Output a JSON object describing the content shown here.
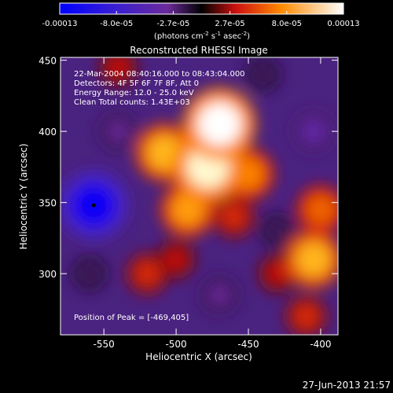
{
  "colorbar": {
    "ticks": [
      "-0.00013",
      "-8.0e-05",
      "-2.7e-05",
      "2.7e-05",
      "8.0e-05",
      "0.00013"
    ],
    "units": "(photons cm",
    "units_sup1": "-2",
    "units_mid": " s",
    "units_sup2": "-1",
    "units_end": " asec",
    "units_sup3": "-2",
    "units_close": ")"
  },
  "chart_data": {
    "type": "heatmap",
    "title": "Reconstructed RHESSI Image",
    "xlabel": "Heliocentric X (arcsec)",
    "ylabel": "Heliocentric Y (arcsec)",
    "xlim": [
      -580,
      -388
    ],
    "ylim": [
      257,
      452
    ],
    "x_ticks": [
      -550,
      -500,
      -450,
      -400
    ],
    "y_ticks": [
      300,
      350,
      400,
      450
    ],
    "clim": [
      -0.00013,
      0.00013
    ],
    "annotations": [
      "22-Mar-2004 08:40:16.000 to 08:43:04.000",
      "Detectors: 4F 5F 6F 7F 8F, Att 0",
      "Energy Range: 12.0 - 25.0 keV",
      "Clean    Total counts: 1.43E+03"
    ],
    "peak_label": "Position of Peak = [-469,405]",
    "peak_position": [
      -469,
      405
    ],
    "marker_position": [
      -557,
      348
    ],
    "sources": [
      {
        "x": -478,
        "y": 375,
        "value": 0.000125
      },
      {
        "x": -470,
        "y": 405,
        "value": 0.00013
      },
      {
        "x": -508,
        "y": 385,
        "value": 9e-05
      },
      {
        "x": -492,
        "y": 345,
        "value": 8e-05
      },
      {
        "x": -450,
        "y": 370,
        "value": 7e-05
      },
      {
        "x": -460,
        "y": 340,
        "value": 4e-05
      },
      {
        "x": -500,
        "y": 310,
        "value": 3e-05
      },
      {
        "x": -405,
        "y": 310,
        "value": 9e-05
      },
      {
        "x": -400,
        "y": 345,
        "value": 6e-05
      },
      {
        "x": -430,
        "y": 300,
        "value": 3e-05
      },
      {
        "x": -410,
        "y": 270,
        "value": 4e-05
      },
      {
        "x": -540,
        "y": 445,
        "value": 3e-05
      },
      {
        "x": -520,
        "y": 300,
        "value": 4e-05
      },
      {
        "x": -557,
        "y": 348,
        "value": -0.00012
      },
      {
        "x": -560,
        "y": 300,
        "value": -2e-05
      },
      {
        "x": -540,
        "y": 400,
        "value": -3e-05
      },
      {
        "x": -405,
        "y": 400,
        "value": -4e-05
      },
      {
        "x": -440,
        "y": 440,
        "value": -2e-05
      },
      {
        "x": -470,
        "y": 285,
        "value": -3e-05
      },
      {
        "x": -430,
        "y": 330,
        "value": -2e-05
      }
    ]
  },
  "footer": {
    "timestamp": "27-Jun-2013 21:57"
  }
}
